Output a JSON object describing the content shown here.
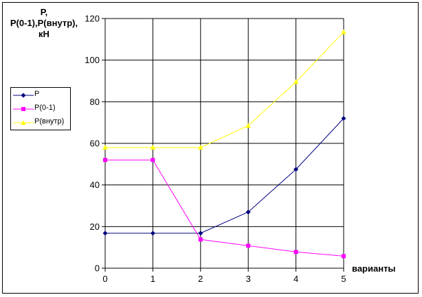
{
  "chart_data": {
    "type": "line",
    "ylabel": "P,\nP(0-1),P(внутр),\nкН",
    "xlabel": "варианты",
    "x": [
      0,
      1,
      2,
      3,
      4,
      5
    ],
    "xlim": [
      0,
      5
    ],
    "ylim": [
      0,
      120
    ],
    "ytick_step": 20,
    "xticks": [
      "0",
      "1",
      "2",
      "3",
      "4",
      "5"
    ],
    "yticks": [
      "0",
      "20",
      "40",
      "60",
      "80",
      "100",
      "120"
    ],
    "grid": true,
    "legend_position": "left",
    "series": [
      {
        "name": "P",
        "values": [
          16.8,
          16.8,
          16.8,
          27,
          47.5,
          72
        ],
        "color": "#000080",
        "marker": "diamond"
      },
      {
        "name": "P(0-1)",
        "values": [
          52,
          52,
          13.8,
          10.8,
          7.8,
          5.8
        ],
        "color": "#ff00ff",
        "marker": "square"
      },
      {
        "name": "P(внутр)",
        "values": [
          58,
          58,
          58,
          68.5,
          89.5,
          113.5
        ],
        "color": "#ffff00",
        "marker": "triangle"
      }
    ]
  }
}
